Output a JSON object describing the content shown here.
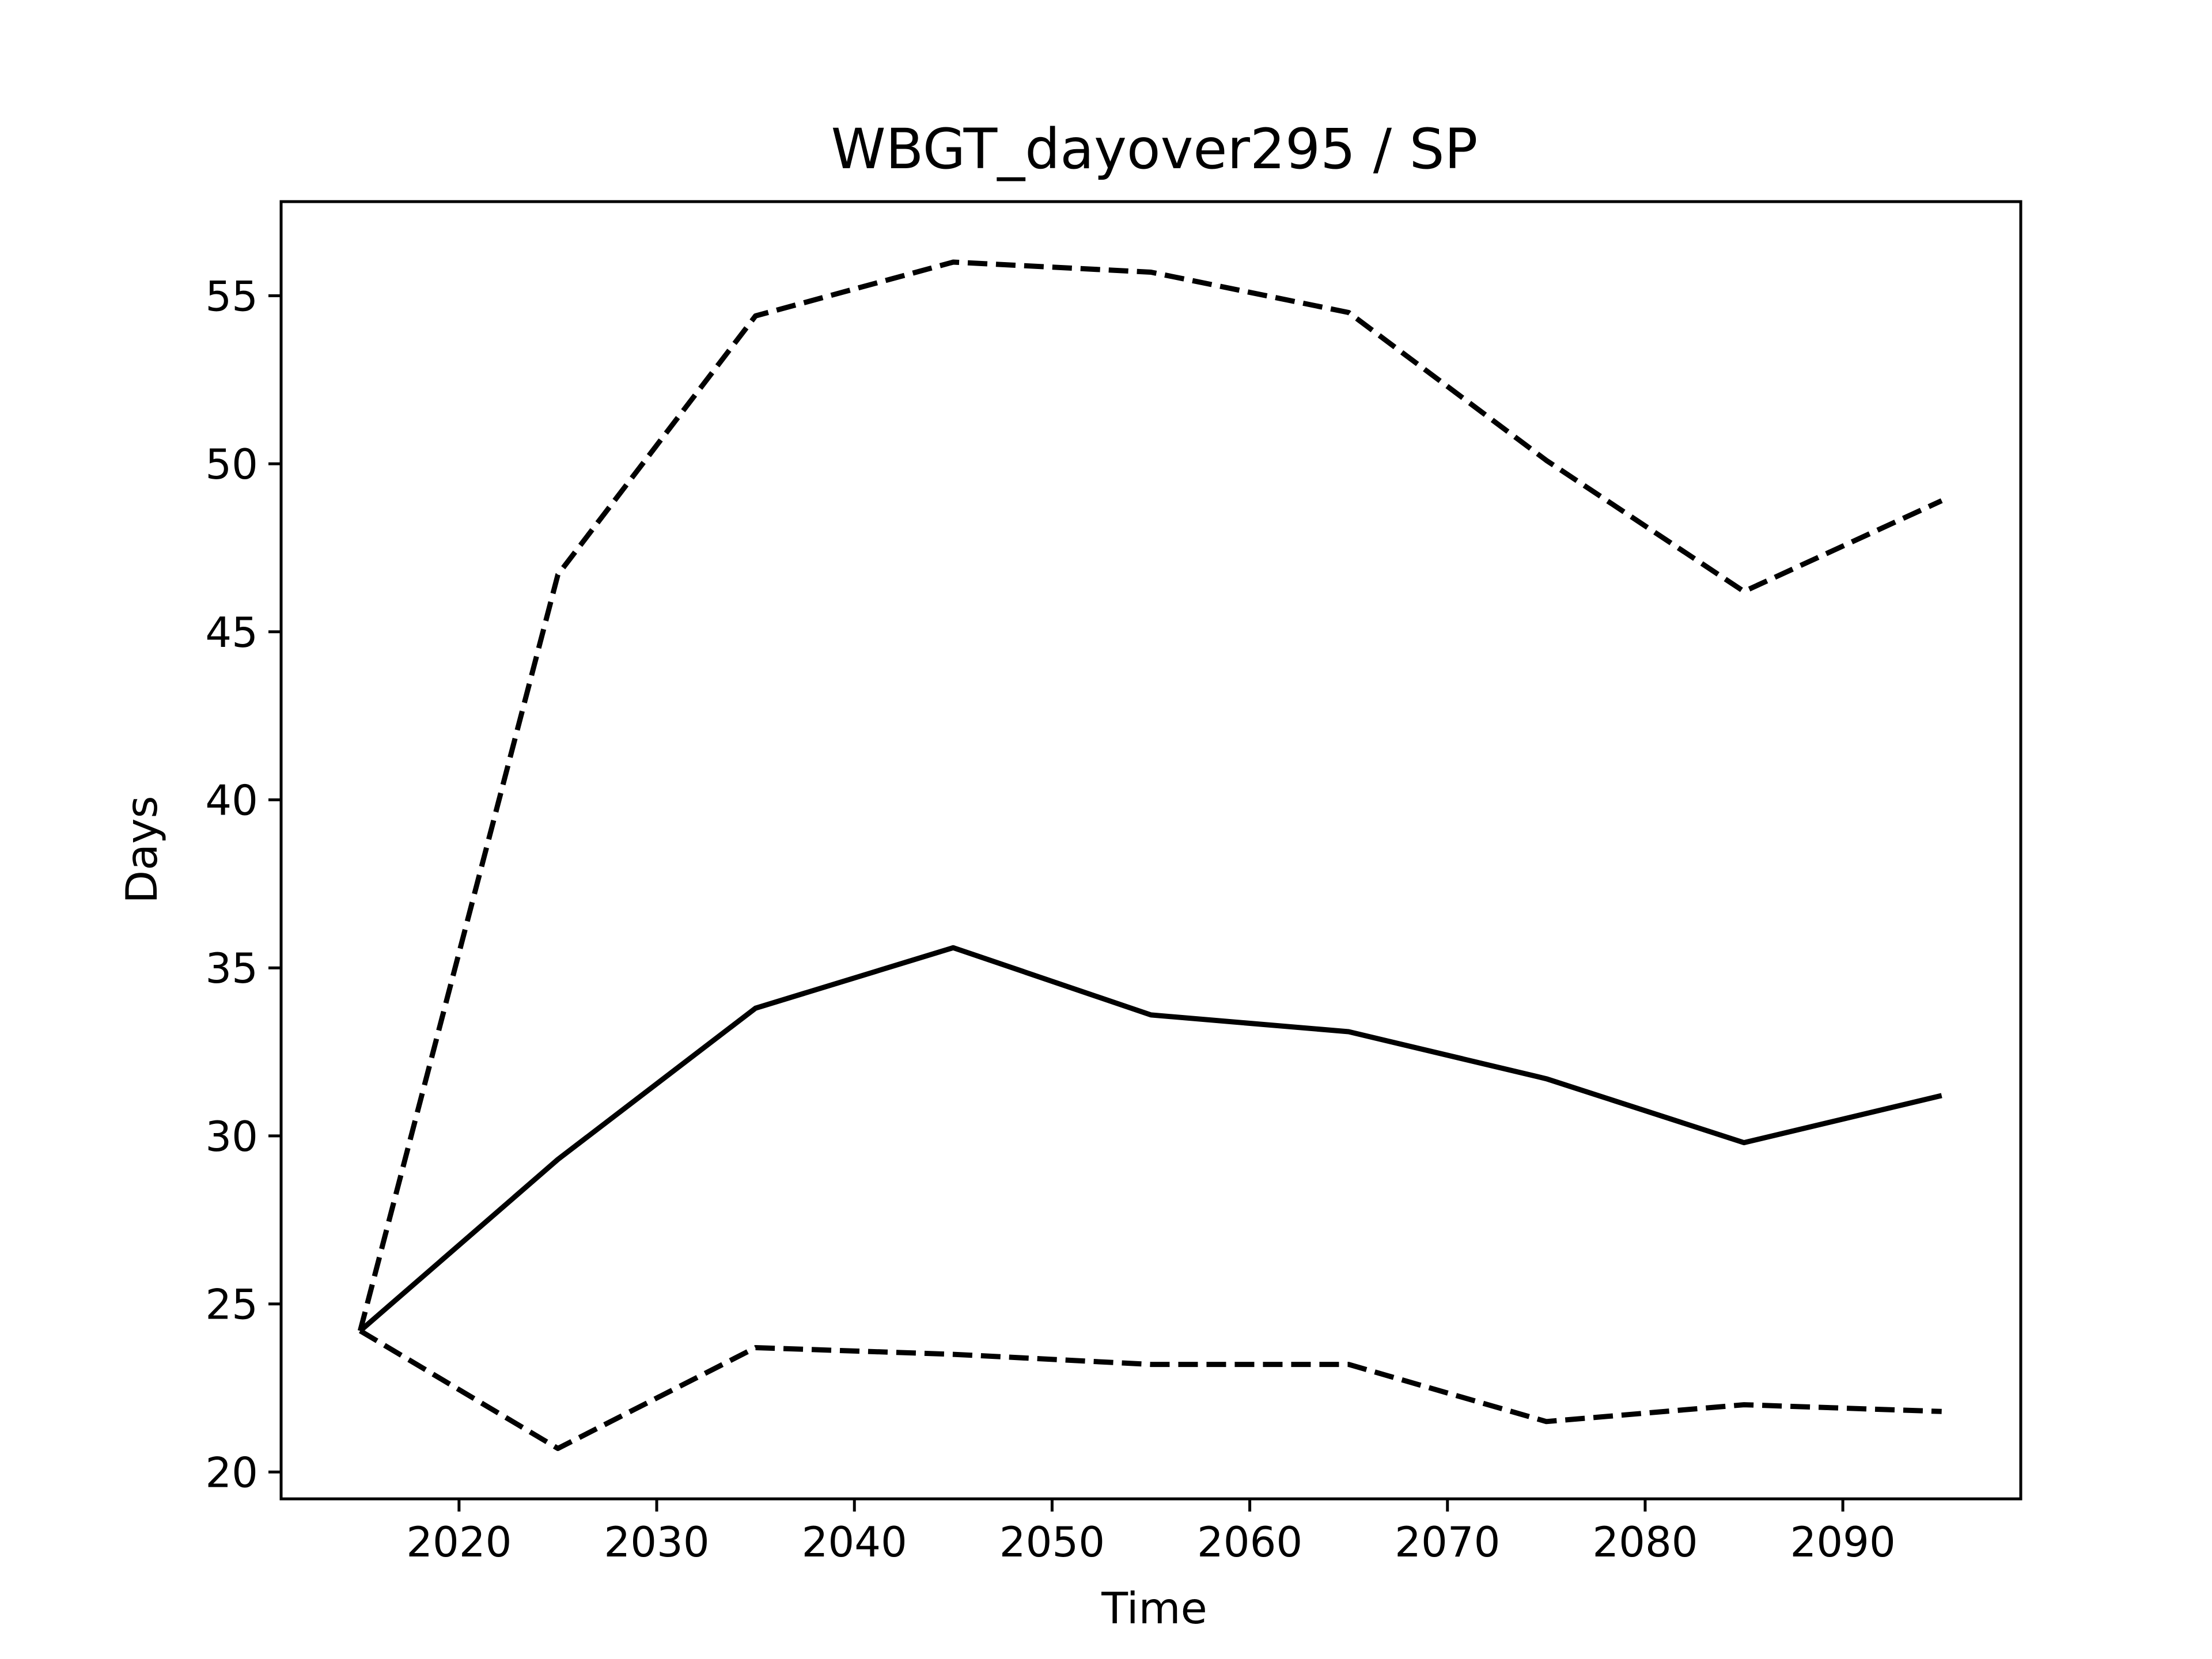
{
  "chart_data": {
    "type": "line",
    "title": "WBGT_dayover295 / SP",
    "xlabel": "Time",
    "ylabel": "Days",
    "xlim": [
      2011,
      2099
    ],
    "ylim": [
      19.2,
      57.8
    ],
    "xticks": [
      2020,
      2030,
      2040,
      2050,
      2060,
      2070,
      2080,
      2090
    ],
    "yticks": [
      20,
      25,
      30,
      35,
      40,
      45,
      50,
      55
    ],
    "grid": false,
    "x": [
      2015,
      2025,
      2035,
      2045,
      2055,
      2065,
      2075,
      2085,
      2095
    ],
    "series": [
      {
        "style": "dashed",
        "color": "#000000",
        "values": [
          24.2,
          46.7,
          54.4,
          56.0,
          55.7,
          54.5,
          50.1,
          46.2,
          48.9
        ]
      },
      {
        "style": "solid",
        "color": "#000000",
        "values": [
          24.2,
          29.3,
          33.8,
          35.6,
          33.6,
          33.1,
          31.7,
          29.8,
          31.2
        ]
      },
      {
        "style": "dashed",
        "color": "#000000",
        "values": [
          24.2,
          20.7,
          23.7,
          23.5,
          23.2,
          23.2,
          21.5,
          22.0,
          21.8
        ]
      }
    ]
  }
}
